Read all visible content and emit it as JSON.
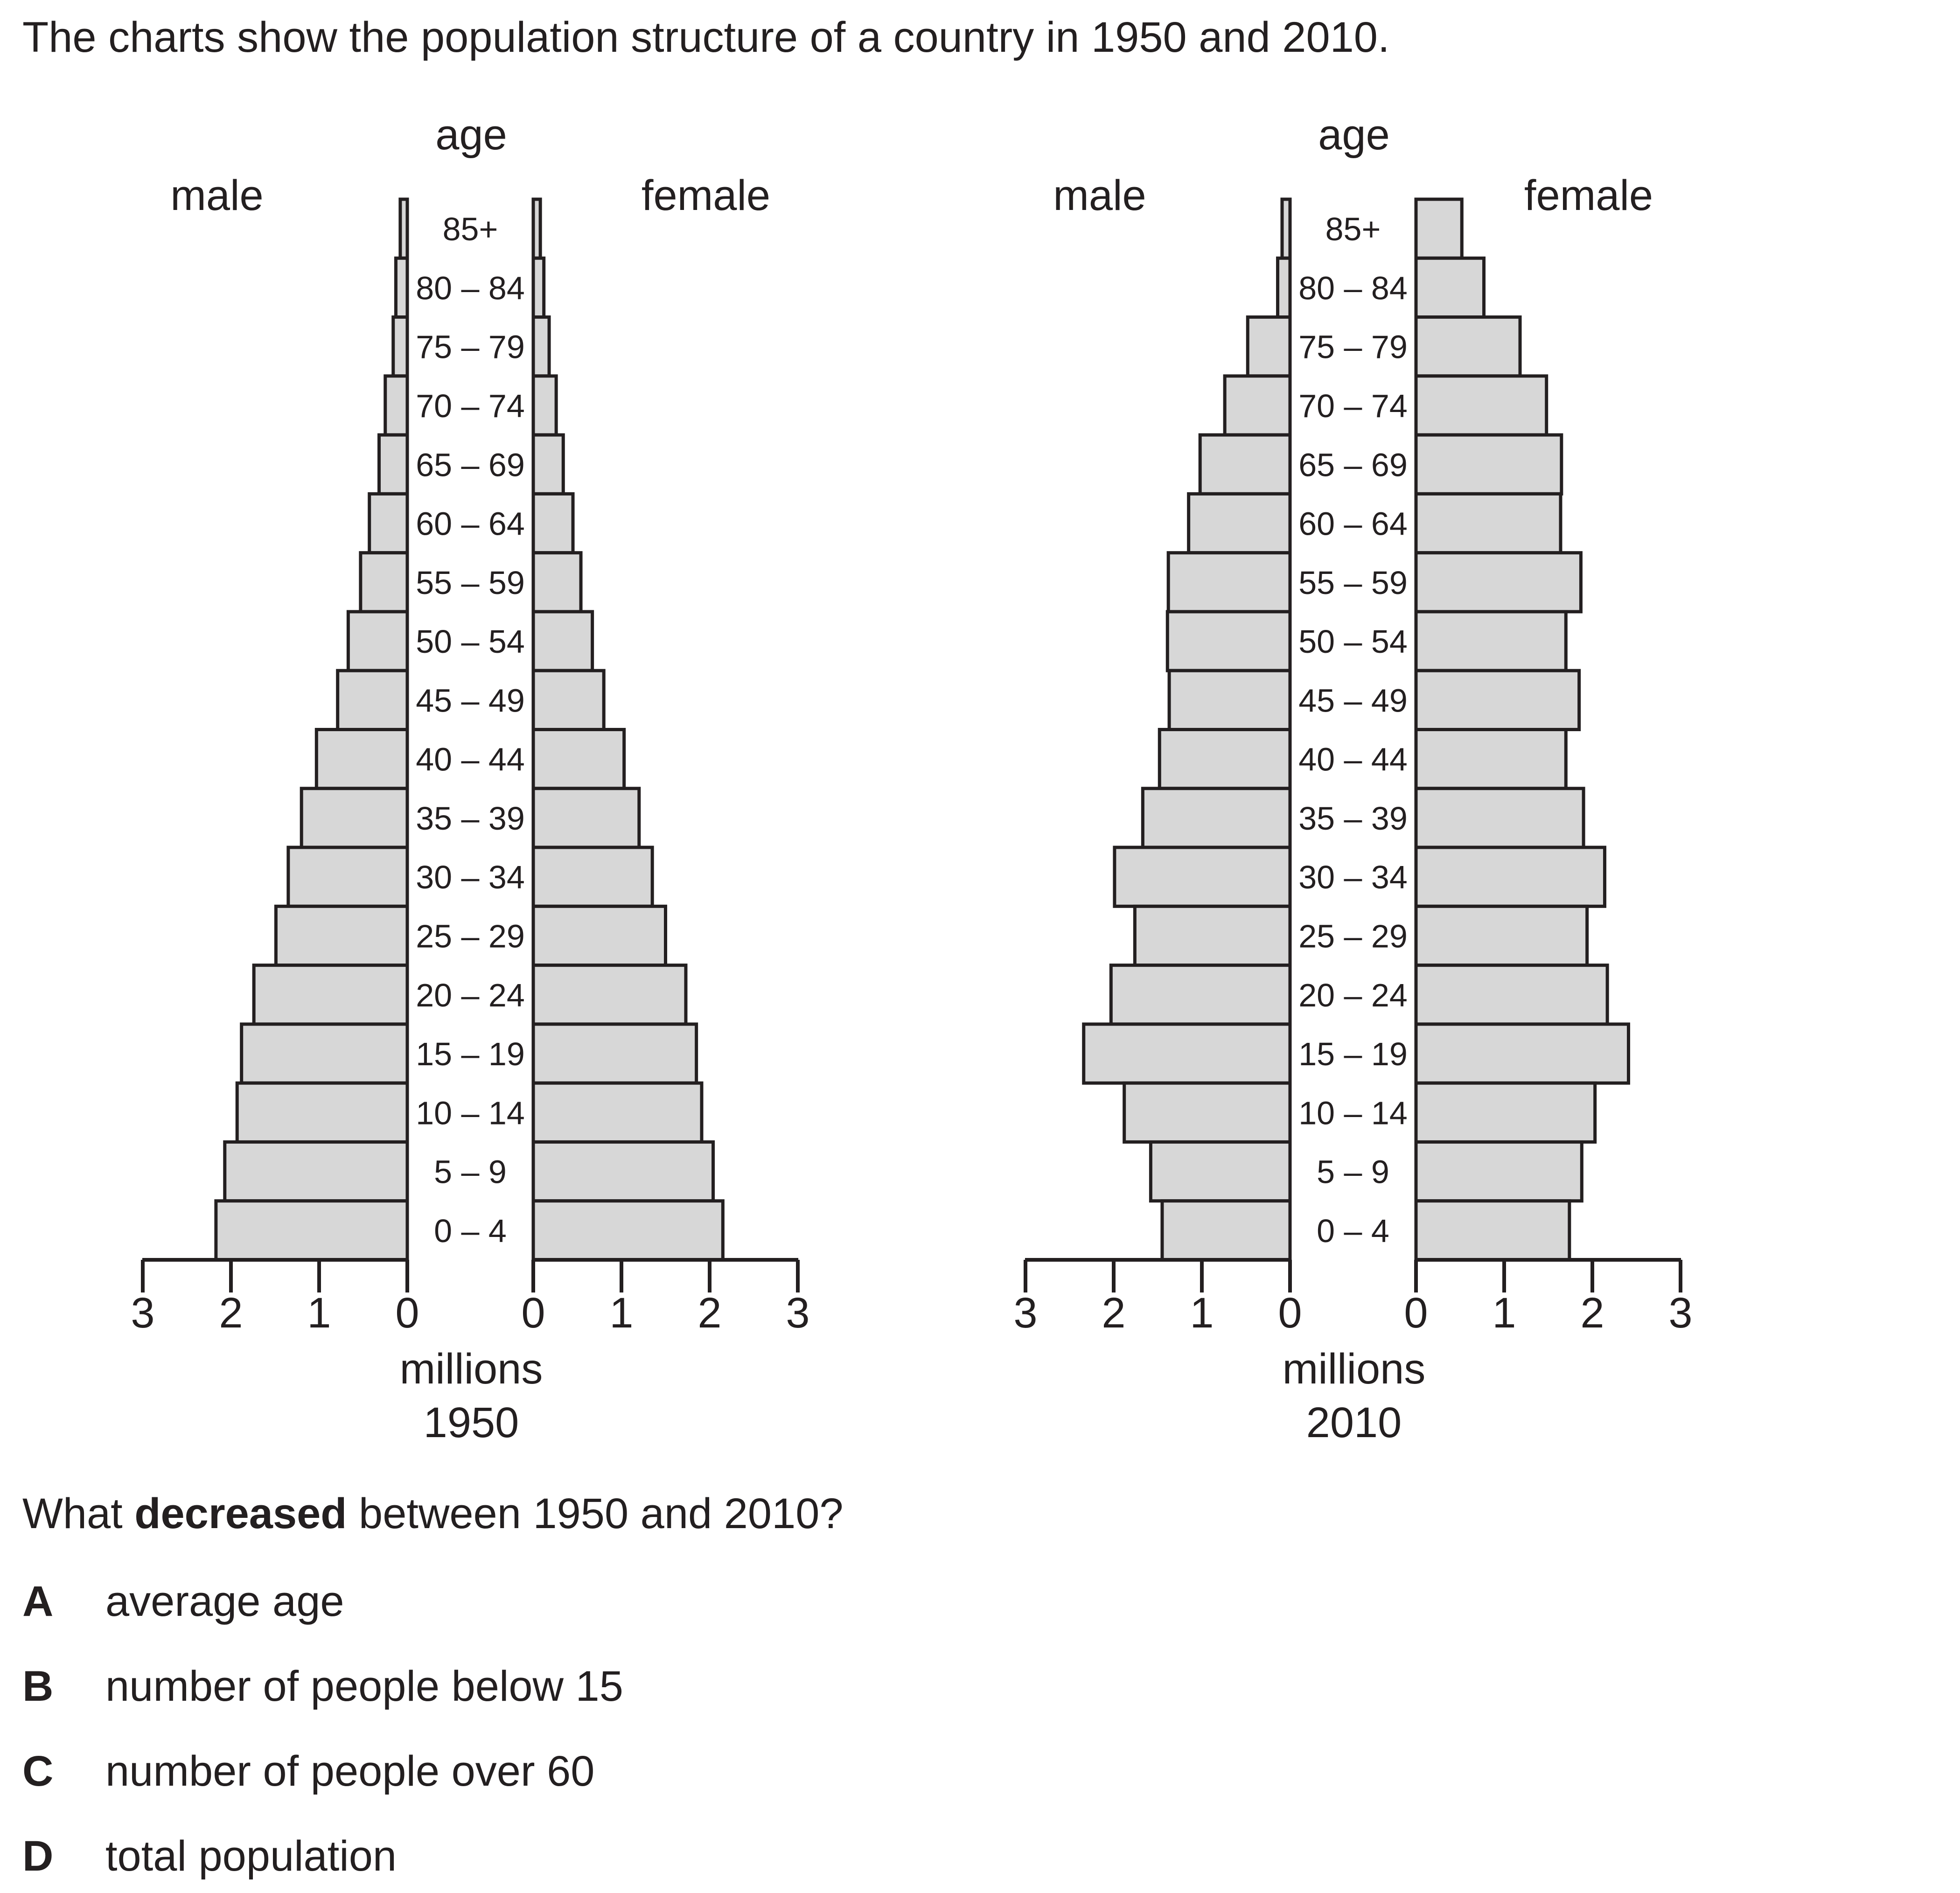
{
  "intro": "The charts show the population structure of a country in 1950 and 2010.",
  "question": {
    "prefix": "What ",
    "emphasis": "decreased",
    "suffix": " between 1950 and 2010?"
  },
  "options": [
    {
      "letter": "A",
      "text": "average age"
    },
    {
      "letter": "B",
      "text": "number of people below 15"
    },
    {
      "letter": "C",
      "text": "number of people over 60"
    },
    {
      "letter": "D",
      "text": "total population"
    }
  ],
  "colors": {
    "bar_fill": "#d7d7d7",
    "stroke": "#231f20",
    "text": "#231f20"
  },
  "chart_data": [
    {
      "type": "bar",
      "orientation": "population-pyramid",
      "caption": "1950",
      "center_label": "age",
      "left_label": "male",
      "right_label": "female",
      "xlabel": "millions",
      "xlim": [
        0,
        3
      ],
      "ticks": [
        "0",
        "1",
        "2",
        "3"
      ],
      "categories": [
        "85+",
        "80 – 84",
        "75 – 79",
        "70 – 74",
        "65 – 69",
        "60 – 64",
        "55 – 59",
        "50 – 54",
        "45 – 49",
        "40 – 44",
        "35 – 39",
        "30 – 34",
        "25 – 29",
        "20 – 24",
        "15 – 19",
        "10 – 14",
        "5 – 9",
        "0 – 4"
      ],
      "series": [
        {
          "name": "male",
          "values": [
            0.08,
            0.13,
            0.16,
            0.25,
            0.32,
            0.43,
            0.53,
            0.67,
            0.79,
            1.03,
            1.2,
            1.35,
            1.49,
            1.74,
            1.88,
            1.93,
            2.07,
            2.17
          ]
        },
        {
          "name": "female",
          "values": [
            0.08,
            0.12,
            0.18,
            0.26,
            0.34,
            0.45,
            0.54,
            0.67,
            0.8,
            1.03,
            1.2,
            1.35,
            1.5,
            1.73,
            1.85,
            1.91,
            2.04,
            2.15
          ]
        }
      ]
    },
    {
      "type": "bar",
      "orientation": "population-pyramid",
      "caption": "2010",
      "center_label": "age",
      "left_label": "male",
      "right_label": "female",
      "xlabel": "millions",
      "xlim": [
        0,
        3
      ],
      "ticks": [
        "0",
        "1",
        "2",
        "3"
      ],
      "categories": [
        "85+",
        "80 – 84",
        "75 – 79",
        "70 – 74",
        "65 – 69",
        "60 – 64",
        "55 – 59",
        "50 – 54",
        "45 – 49",
        "40 – 44",
        "35 – 39",
        "30 – 34",
        "25 – 29",
        "20 – 24",
        "15 – 19",
        "10 – 14",
        "5 – 9",
        "0 – 4"
      ],
      "series": [
        {
          "name": "male",
          "values": [
            0.09,
            0.14,
            0.48,
            0.74,
            1.02,
            1.15,
            1.38,
            1.39,
            1.37,
            1.48,
            1.67,
            1.99,
            1.76,
            2.03,
            2.34,
            1.88,
            1.58,
            1.45
          ]
        },
        {
          "name": "female",
          "values": [
            0.52,
            0.77,
            1.18,
            1.48,
            1.65,
            1.64,
            1.87,
            1.7,
            1.85,
            1.7,
            1.9,
            2.14,
            1.94,
            2.17,
            2.41,
            2.03,
            1.88,
            1.74
          ]
        }
      ]
    }
  ]
}
